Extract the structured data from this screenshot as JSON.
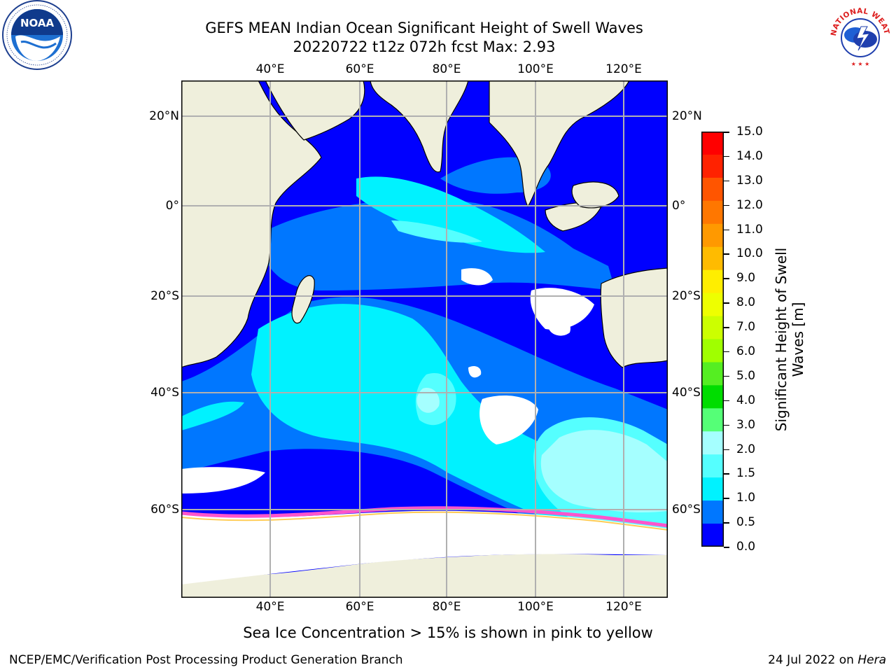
{
  "header": {
    "title_line1": "GEFS MEAN Indian Ocean Significant Height of Swell Waves",
    "title_line2": "20220722 t12z 072h fcst   Max: 2.93"
  },
  "logos": {
    "left": {
      "name": "NOAA",
      "ring_text": "NATIONAL OCEANIC AND ATMOSPHERIC ADMINISTRATION · U.S. DEPARTMENT OF COMMERCE"
    },
    "right": {
      "name": "NATIONAL WEATHER SERVICE"
    }
  },
  "map": {
    "lon_ticks": [
      "40°E",
      "60°E",
      "80°E",
      "100°E",
      "120°E"
    ],
    "lat_ticks": [
      "20°N",
      "0°",
      "20°S",
      "40°S",
      "60°S"
    ],
    "colors": {
      "land": "#efefdc",
      "gridlines": "#b0b0b0",
      "coastline": "#000000"
    }
  },
  "colorbar": {
    "title_line1": "Significant Height of Swell",
    "title_line2": "Waves [m]",
    "labels": [
      "15.0",
      "14.0",
      "13.0",
      "12.0",
      "11.0",
      "10.0",
      "9.0",
      "8.0",
      "7.0",
      "6.0",
      "5.0",
      "4.0",
      "3.0",
      "2.0",
      "1.5",
      "1.0",
      "0.5",
      "0.0"
    ],
    "colors_top_to_bottom": [
      "#ff0000",
      "#ff2200",
      "#ff5500",
      "#ff7700",
      "#ff9900",
      "#ffbb00",
      "#ffee00",
      "#eeff00",
      "#ccff00",
      "#a0ff00",
      "#55ee22",
      "#00dd00",
      "#55ff77",
      "#a5ffff",
      "#55ffff",
      "#00f2ff",
      "#0077ff",
      "#0000ff"
    ]
  },
  "notes": {
    "ice": "Sea Ice Concentration > 15% is shown in pink to yellow"
  },
  "footer": {
    "left": "NCEP/EMC/Verification Post Processing Product Generation Branch",
    "date": "24 Jul 2022 on ",
    "machine": "Hera"
  }
}
